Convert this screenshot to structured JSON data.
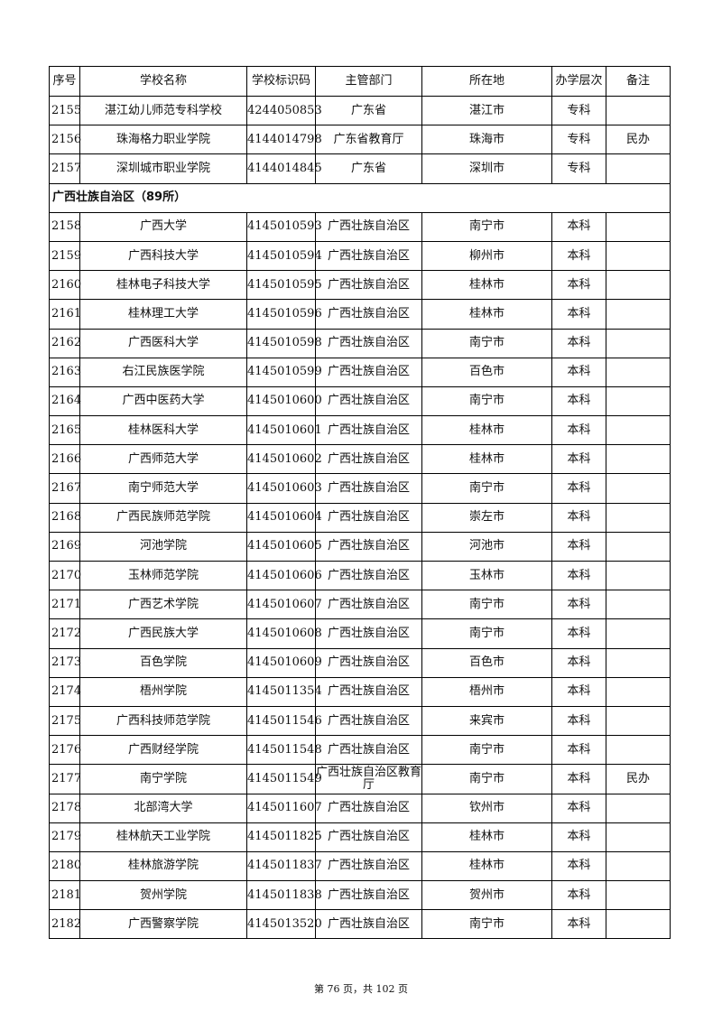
{
  "table": {
    "headers": [
      "序号",
      "学校名称",
      "学校标识码",
      "主管部门",
      "所在地",
      "办学层次",
      "备注"
    ],
    "rows_before": [
      [
        "2155",
        "湛江幼儿师范专科学校",
        "4244050853",
        "广东省",
        "湛江市",
        "专科",
        ""
      ],
      [
        "2156",
        "珠海格力职业学院",
        "4144014798",
        "广东省教育厅",
        "珠海市",
        "专科",
        "民办"
      ],
      [
        "2157",
        "深圳城市职业学院",
        "4144014845",
        "广东省",
        "深圳市",
        "专科",
        ""
      ]
    ],
    "group_label": "广西壮族自治区（89所）",
    "rows_after": [
      [
        "2158",
        "广西大学",
        "4145010593",
        "广西壮族自治区",
        "南宁市",
        "本科",
        ""
      ],
      [
        "2159",
        "广西科技大学",
        "4145010594",
        "广西壮族自治区",
        "柳州市",
        "本科",
        ""
      ],
      [
        "2160",
        "桂林电子科技大学",
        "4145010595",
        "广西壮族自治区",
        "桂林市",
        "本科",
        ""
      ],
      [
        "2161",
        "桂林理工大学",
        "4145010596",
        "广西壮族自治区",
        "桂林市",
        "本科",
        ""
      ],
      [
        "2162",
        "广西医科大学",
        "4145010598",
        "广西壮族自治区",
        "南宁市",
        "本科",
        ""
      ],
      [
        "2163",
        "右江民族医学院",
        "4145010599",
        "广西壮族自治区",
        "百色市",
        "本科",
        ""
      ],
      [
        "2164",
        "广西中医药大学",
        "4145010600",
        "广西壮族自治区",
        "南宁市",
        "本科",
        ""
      ],
      [
        "2165",
        "桂林医科大学",
        "4145010601",
        "广西壮族自治区",
        "桂林市",
        "本科",
        ""
      ],
      [
        "2166",
        "广西师范大学",
        "4145010602",
        "广西壮族自治区",
        "桂林市",
        "本科",
        ""
      ],
      [
        "2167",
        "南宁师范大学",
        "4145010603",
        "广西壮族自治区",
        "南宁市",
        "本科",
        ""
      ],
      [
        "2168",
        "广西民族师范学院",
        "4145010604",
        "广西壮族自治区",
        "崇左市",
        "本科",
        ""
      ],
      [
        "2169",
        "河池学院",
        "4145010605",
        "广西壮族自治区",
        "河池市",
        "本科",
        ""
      ],
      [
        "2170",
        "玉林师范学院",
        "4145010606",
        "广西壮族自治区",
        "玉林市",
        "本科",
        ""
      ],
      [
        "2171",
        "广西艺术学院",
        "4145010607",
        "广西壮族自治区",
        "南宁市",
        "本科",
        ""
      ],
      [
        "2172",
        "广西民族大学",
        "4145010608",
        "广西壮族自治区",
        "南宁市",
        "本科",
        ""
      ],
      [
        "2173",
        "百色学院",
        "4145010609",
        "广西壮族自治区",
        "百色市",
        "本科",
        ""
      ],
      [
        "2174",
        "梧州学院",
        "4145011354",
        "广西壮族自治区",
        "梧州市",
        "本科",
        ""
      ],
      [
        "2175",
        "广西科技师范学院",
        "4145011546",
        "广西壮族自治区",
        "来宾市",
        "本科",
        ""
      ],
      [
        "2176",
        "广西财经学院",
        "4145011548",
        "广西壮族自治区",
        "南宁市",
        "本科",
        ""
      ],
      [
        "2177",
        "南宁学院",
        "4145011549",
        "广西壮族自治区教育厅",
        "南宁市",
        "本科",
        "民办"
      ],
      [
        "2178",
        "北部湾大学",
        "4145011607",
        "广西壮族自治区",
        "钦州市",
        "本科",
        ""
      ],
      [
        "2179",
        "桂林航天工业学院",
        "4145011825",
        "广西壮族自治区",
        "桂林市",
        "本科",
        ""
      ],
      [
        "2180",
        "桂林旅游学院",
        "4145011837",
        "广西壮族自治区",
        "桂林市",
        "本科",
        ""
      ],
      [
        "2181",
        "贺州学院",
        "4145011838",
        "广西壮族自治区",
        "贺州市",
        "本科",
        ""
      ],
      [
        "2182",
        "广西警察学院",
        "4145013520",
        "广西壮族自治区",
        "南宁市",
        "本科",
        ""
      ]
    ]
  },
  "footer": "第 76 页，共 102 页"
}
